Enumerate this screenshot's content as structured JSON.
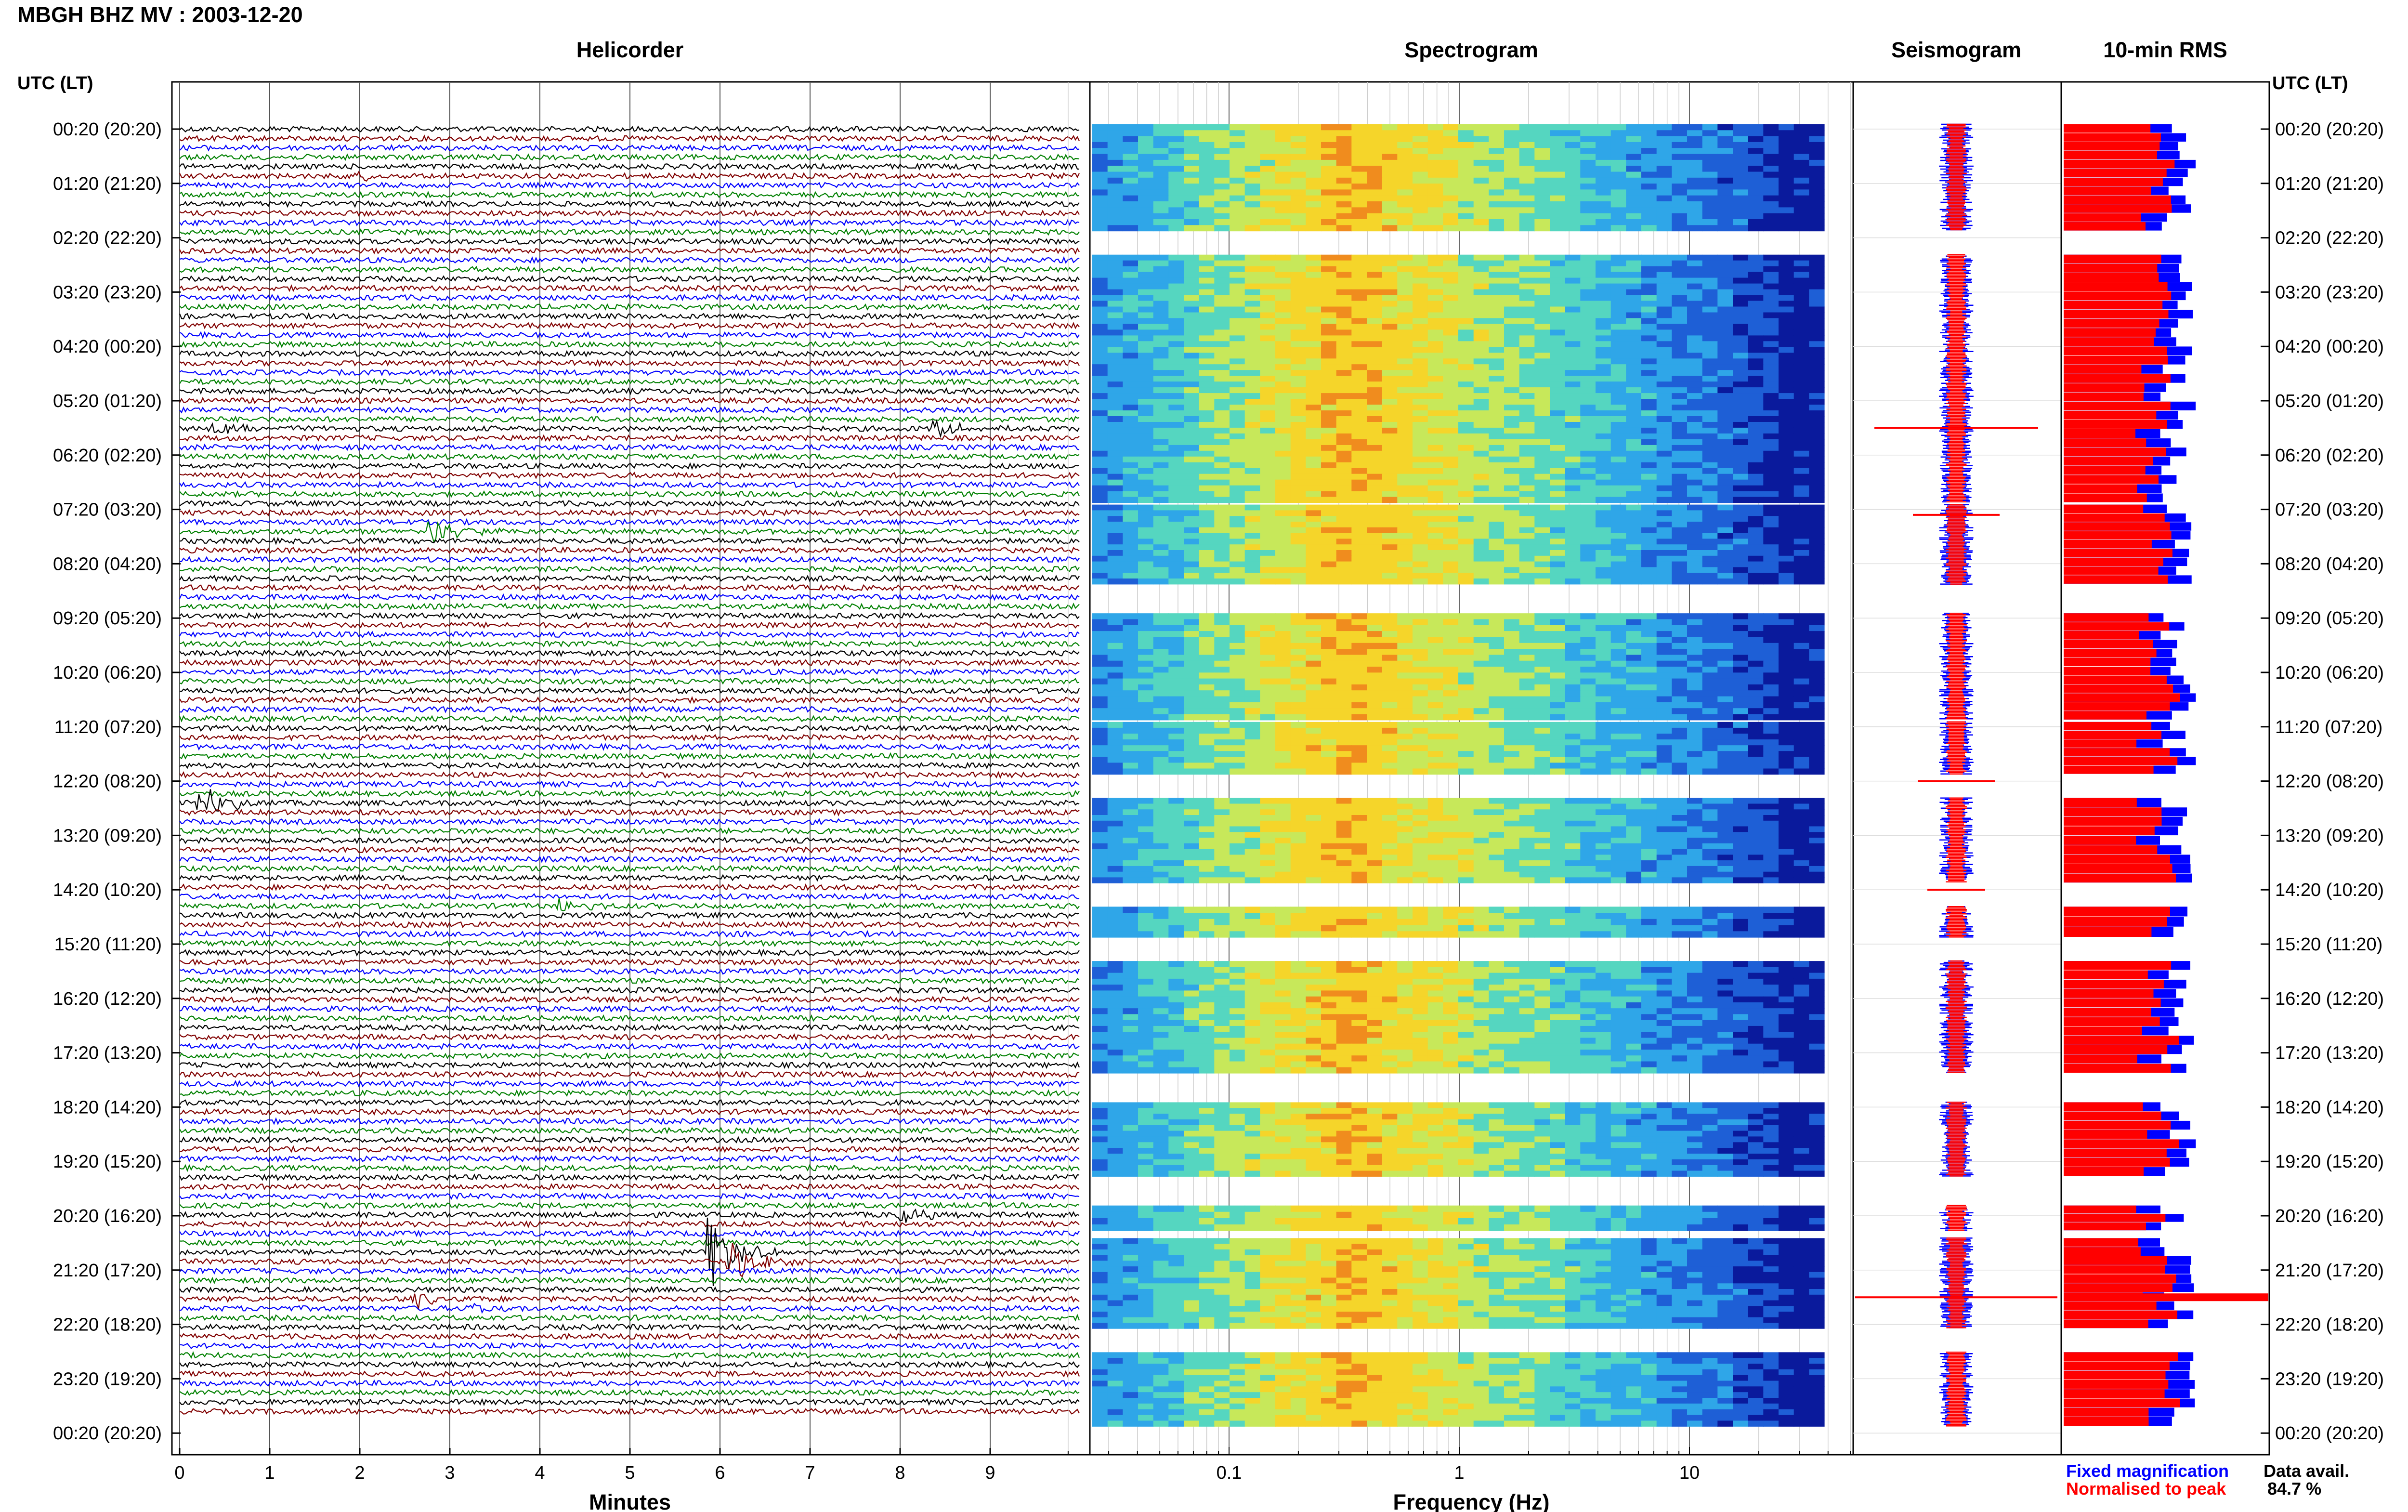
{
  "header": {
    "title": "MBGH BHZ MV : 2003-12-20"
  },
  "panels": {
    "helicorder": "Helicorder",
    "spectrogram": "Spectrogram",
    "seismogram": "Seismogram",
    "rms": "10-min RMS"
  },
  "axes": {
    "time_label_left": "UTC (LT)",
    "time_label_right": "UTC (LT)",
    "helicorder_xlabel": "Minutes",
    "spectrogram_xlabel": "Frequency (Hz)"
  },
  "legend": {
    "fixed": "Fixed magnification",
    "normalised": "Normalised to peak",
    "fixed_color": "#0000ff",
    "normalised_color": "#ff0000"
  },
  "availability": {
    "label": "Data avail.",
    "value": "84.7 %"
  },
  "colors": {
    "trace_cycle": [
      "#000000",
      "#800000",
      "#0000ff",
      "#008000"
    ],
    "spectrogram_colormap": [
      "#0a1a9c",
      "#1e5fd6",
      "#2fa6e8",
      "#55d6c0",
      "#c7e85a",
      "#f5d52a",
      "#f08c1e"
    ]
  },
  "chart_data": [
    {
      "type": "line",
      "name": "helicorder",
      "title": "Helicorder",
      "xlabel": "Minutes",
      "x_ticks": [
        "0",
        "1",
        "2",
        "3",
        "4",
        "5",
        "6",
        "7",
        "8",
        "9"
      ],
      "xlim": [
        0,
        10
      ],
      "y_ticks_left": [
        "00:20 (20:20)",
        "01:20 (21:20)",
        "02:20 (22:20)",
        "03:20 (23:20)",
        "04:20 (00:20)",
        "05:20 (01:20)",
        "06:20 (02:20)",
        "07:20 (03:20)",
        "08:20 (04:20)",
        "09:20 (05:20)",
        "10:20 (06:20)",
        "11:20 (07:20)",
        "12:20 (08:20)",
        "13:20 (09:20)",
        "14:20 (10:20)",
        "15:20 (11:20)",
        "16:20 (12:20)",
        "17:20 (13:20)",
        "18:20 (14:20)",
        "19:20 (15:20)",
        "20:20 (16:20)",
        "21:20 (17:20)",
        "22:20 (18:20)",
        "23:20 (19:20)",
        "00:20 (20:20)"
      ],
      "trace_count": 138,
      "events": [
        {
          "trace": 5,
          "minute": 2.0,
          "amp": 0.35
        },
        {
          "trace": 32,
          "minute": 0.4,
          "amp": 0.4
        },
        {
          "trace": 32,
          "minute": 8.4,
          "amp": 0.6
        },
        {
          "trace": 43,
          "minute": 2.8,
          "amp": 0.9
        },
        {
          "trace": 72,
          "minute": 0.2,
          "amp": 1.4
        },
        {
          "trace": 83,
          "minute": 4.2,
          "amp": 0.5
        },
        {
          "trace": 120,
          "minute": 5.9,
          "amp": 2.5
        },
        {
          "trace": 121,
          "minute": 6.1,
          "amp": 1.5
        },
        {
          "trace": 125,
          "minute": 2.6,
          "amp": 0.6
        },
        {
          "trace": 126,
          "minute": 3.2,
          "amp": 0.5
        },
        {
          "trace": 116,
          "minute": 8.0,
          "amp": 0.6
        }
      ],
      "grid": true
    },
    {
      "type": "heatmap",
      "name": "spectrogram",
      "title": "Spectrogram",
      "xlabel": "Frequency (Hz)",
      "x_scale": "log",
      "xlim": [
        0.02,
        50
      ],
      "x_ticks": [
        "0.1",
        "1",
        "10"
      ],
      "peak_frequency_hz": 0.3,
      "data_segments_hours": [
        [
          0.0,
          2.0
        ],
        [
          2.4,
          7.0
        ],
        [
          7.0,
          8.5
        ],
        [
          9.0,
          11.0
        ],
        [
          11.0,
          12.0
        ],
        [
          12.4,
          14.0
        ],
        [
          14.4,
          15.0
        ],
        [
          15.4,
          17.5
        ],
        [
          18.0,
          19.4
        ],
        [
          19.9,
          20.4
        ],
        [
          20.5,
          22.2
        ],
        [
          22.6,
          24.0
        ]
      ],
      "grid": true
    },
    {
      "type": "bar",
      "name": "seismogram",
      "title": "Seismogram",
      "orientation": "horizontal",
      "series": [
        {
          "name": "Fixed magnification",
          "color": "#0000ff"
        },
        {
          "name": "Normalised to peak",
          "color": "#ff0000"
        }
      ]
    },
    {
      "type": "bar",
      "name": "rms",
      "title": "10-min RMS",
      "orientation": "horizontal",
      "series": [
        {
          "name": "Fixed magnification",
          "color": "#0000ff"
        },
        {
          "name": "Normalised to peak",
          "color": "#ff0000"
        }
      ]
    }
  ]
}
